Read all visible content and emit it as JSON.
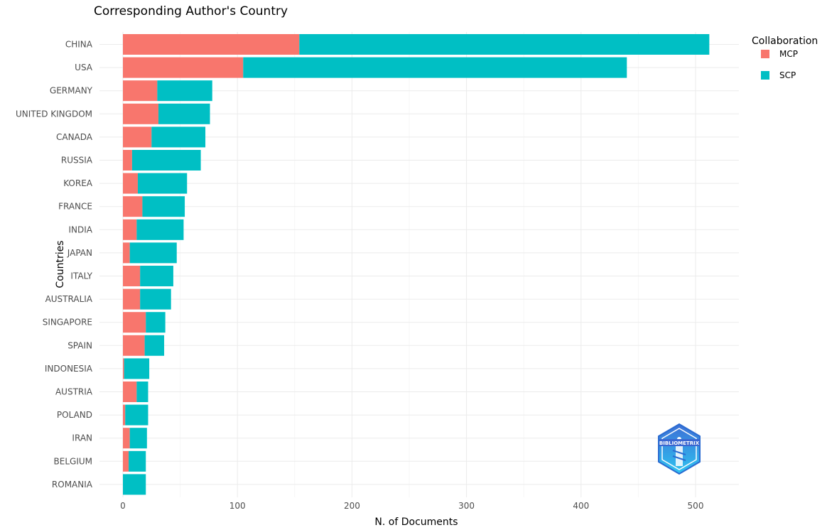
{
  "chart_data": {
    "type": "bar",
    "orientation": "horizontal",
    "stacked": true,
    "title": "Corresponding Author's Country",
    "xlabel": "N. of Documents",
    "ylabel": "Countries",
    "xlim": [
      0,
      540
    ],
    "xticks": [
      0,
      100,
      200,
      300,
      400,
      500
    ],
    "grid": true,
    "legend": {
      "title": "Collaboration",
      "position": "top-right"
    },
    "categories": [
      "CHINA",
      "USA",
      "GERMANY",
      "UNITED KINGDOM",
      "CANADA",
      "RUSSIA",
      "KOREA",
      "FRANCE",
      "INDIA",
      "JAPAN",
      "ITALY",
      "AUSTRALIA",
      "SINGAPORE",
      "SPAIN",
      "INDONESIA",
      "AUSTRIA",
      "POLAND",
      "IRAN",
      "BELGIUM",
      "ROMANIA"
    ],
    "series": [
      {
        "name": "MCP",
        "color": "#F8766D",
        "values": [
          154,
          105,
          30,
          31,
          25,
          8,
          13,
          17,
          12,
          6,
          15,
          15,
          20,
          19,
          1,
          12,
          2,
          6,
          5,
          0
        ]
      },
      {
        "name": "SCP",
        "color": "#00BFC4",
        "values": [
          358,
          335,
          48,
          45,
          47,
          60,
          43,
          37,
          41,
          41,
          29,
          27,
          17,
          17,
          22,
          10,
          20,
          15,
          15,
          20
        ]
      }
    ]
  },
  "logo": {
    "text": "BIBLIOMETRIX"
  }
}
